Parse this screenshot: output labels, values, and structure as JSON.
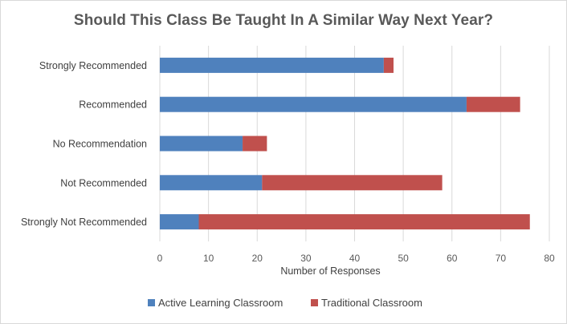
{
  "chart_data": {
    "type": "bar",
    "orientation": "horizontal",
    "stacked": true,
    "title": "Should This Class Be Taught In A Similar  Way Next Year?",
    "xlabel": "Number of Responses",
    "ylabel": "",
    "xlim": [
      0,
      80
    ],
    "x_ticks": [
      "0",
      "10",
      "20",
      "30",
      "40",
      "50",
      "60",
      "70",
      "80"
    ],
    "grid": "vertical",
    "legend_position": "bottom",
    "categories": [
      "Strongly Recommended",
      "Recommended",
      "No Recommendation",
      "Not Recommended",
      "Strongly Not Recommended"
    ],
    "series": [
      {
        "name": "Active Learning Classroom",
        "color": "#4f81bd",
        "values": [
          46,
          63,
          17,
          21,
          8
        ]
      },
      {
        "name": "Traditional Classroom",
        "color": "#c0504d",
        "values": [
          2,
          11,
          5,
          37,
          68
        ]
      }
    ]
  }
}
